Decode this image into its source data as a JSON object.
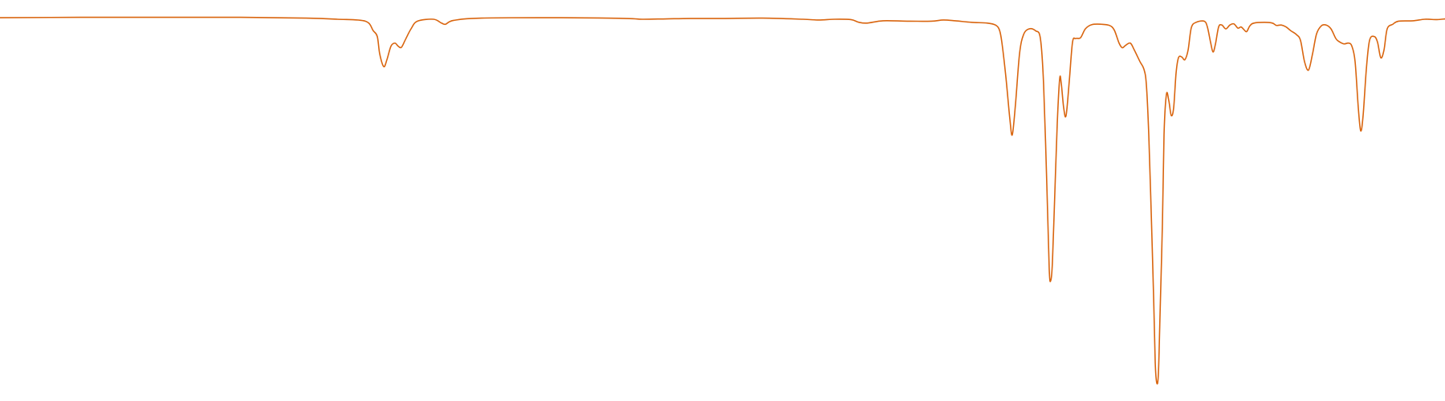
{
  "chart_data": {
    "type": "line",
    "title": "",
    "xlabel": "",
    "ylabel": "",
    "axes_visible": false,
    "grid": false,
    "legend": "none",
    "xlim": [
      0,
      1800
    ],
    "ylim": [
      0,
      1
    ],
    "color": "#d9650f",
    "series": [
      {
        "points": [
          [
            0,
            0.954
          ],
          [
            100,
            0.955
          ],
          [
            200,
            0.955
          ],
          [
            300,
            0.955
          ],
          [
            380,
            0.953
          ],
          [
            420,
            0.95
          ],
          [
            455,
            0.945
          ],
          [
            465,
            0.92
          ],
          [
            470,
            0.905
          ],
          [
            473,
            0.86
          ],
          [
            478,
            0.827
          ],
          [
            482,
            0.845
          ],
          [
            487,
            0.88
          ],
          [
            492,
            0.888
          ],
          [
            496,
            0.88
          ],
          [
            500,
            0.877
          ],
          [
            505,
            0.897
          ],
          [
            512,
            0.925
          ],
          [
            520,
            0.945
          ],
          [
            540,
            0.95
          ],
          [
            550,
            0.94
          ],
          [
            555,
            0.937
          ],
          [
            565,
            0.947
          ],
          [
            600,
            0.953
          ],
          [
            700,
            0.954
          ],
          [
            780,
            0.952
          ],
          [
            800,
            0.95
          ],
          [
            830,
            0.951
          ],
          [
            860,
            0.952
          ],
          [
            900,
            0.952
          ],
          [
            950,
            0.953
          ],
          [
            1000,
            0.95
          ],
          [
            1020,
            0.948
          ],
          [
            1040,
            0.95
          ],
          [
            1060,
            0.949
          ],
          [
            1070,
            0.942
          ],
          [
            1080,
            0.94
          ],
          [
            1100,
            0.946
          ],
          [
            1130,
            0.945
          ],
          [
            1160,
            0.945
          ],
          [
            1175,
            0.948
          ],
          [
            1190,
            0.946
          ],
          [
            1210,
            0.942
          ],
          [
            1230,
            0.94
          ],
          [
            1240,
            0.935
          ],
          [
            1245,
            0.922
          ],
          [
            1248,
            0.89
          ],
          [
            1253,
            0.8
          ],
          [
            1258,
            0.69
          ],
          [
            1261,
            0.65
          ],
          [
            1265,
            0.73
          ],
          [
            1270,
            0.86
          ],
          [
            1275,
            0.91
          ],
          [
            1282,
            0.925
          ],
          [
            1290,
            0.92
          ],
          [
            1296,
            0.9
          ],
          [
            1300,
            0.78
          ],
          [
            1304,
            0.52
          ],
          [
            1307,
            0.3
          ],
          [
            1309,
            0.272
          ],
          [
            1311,
            0.32
          ],
          [
            1314,
            0.5
          ],
          [
            1317,
            0.68
          ],
          [
            1320,
            0.795
          ],
          [
            1322,
            0.783
          ],
          [
            1325,
            0.72
          ],
          [
            1328,
            0.7
          ],
          [
            1332,
            0.79
          ],
          [
            1336,
            0.89
          ],
          [
            1340,
            0.9
          ],
          [
            1346,
            0.902
          ],
          [
            1352,
            0.925
          ],
          [
            1360,
            0.936
          ],
          [
            1372,
            0.937
          ],
          [
            1382,
            0.934
          ],
          [
            1388,
            0.922
          ],
          [
            1394,
            0.888
          ],
          [
            1398,
            0.876
          ],
          [
            1402,
            0.882
          ],
          [
            1408,
            0.888
          ],
          [
            1413,
            0.87
          ],
          [
            1420,
            0.84
          ],
          [
            1425,
            0.82
          ],
          [
            1428,
            0.78
          ],
          [
            1431,
            0.65
          ],
          [
            1434,
            0.45
          ],
          [
            1437,
            0.23
          ],
          [
            1439,
            0.06
          ],
          [
            1441,
            0.005
          ],
          [
            1443,
            0.03
          ],
          [
            1445,
            0.18
          ],
          [
            1448,
            0.42
          ],
          [
            1450,
            0.65
          ],
          [
            1453,
            0.755
          ],
          [
            1456,
            0.738
          ],
          [
            1459,
            0.7
          ],
          [
            1462,
            0.72
          ],
          [
            1465,
            0.81
          ],
          [
            1468,
            0.85
          ],
          [
            1472,
            0.852
          ],
          [
            1476,
            0.845
          ],
          [
            1480,
            0.87
          ],
          [
            1484,
            0.928
          ],
          [
            1490,
            0.942
          ],
          [
            1500,
            0.945
          ],
          [
            1504,
            0.93
          ],
          [
            1508,
            0.89
          ],
          [
            1511,
            0.865
          ],
          [
            1514,
            0.885
          ],
          [
            1518,
            0.93
          ],
          [
            1522,
            0.935
          ],
          [
            1527,
            0.925
          ],
          [
            1532,
            0.935
          ],
          [
            1537,
            0.938
          ],
          [
            1542,
            0.927
          ],
          [
            1546,
            0.93
          ],
          [
            1550,
            0.922
          ],
          [
            1553,
            0.918
          ],
          [
            1557,
            0.933
          ],
          [
            1562,
            0.94
          ],
          [
            1575,
            0.942
          ],
          [
            1585,
            0.94
          ],
          [
            1590,
            0.934
          ],
          [
            1596,
            0.935
          ],
          [
            1602,
            0.93
          ],
          [
            1608,
            0.92
          ],
          [
            1615,
            0.91
          ],
          [
            1620,
            0.895
          ],
          [
            1625,
            0.84
          ],
          [
            1630,
            0.818
          ],
          [
            1635,
            0.86
          ],
          [
            1640,
            0.912
          ],
          [
            1646,
            0.933
          ],
          [
            1652,
            0.935
          ],
          [
            1658,
            0.925
          ],
          [
            1664,
            0.9
          ],
          [
            1668,
            0.892
          ],
          [
            1674,
            0.886
          ],
          [
            1680,
            0.888
          ],
          [
            1684,
            0.88
          ],
          [
            1688,
            0.84
          ],
          [
            1692,
            0.72
          ],
          [
            1695,
            0.66
          ],
          [
            1698,
            0.7
          ],
          [
            1702,
            0.82
          ],
          [
            1706,
            0.895
          ],
          [
            1712,
            0.905
          ],
          [
            1716,
            0.89
          ],
          [
            1720,
            0.85
          ],
          [
            1724,
            0.87
          ],
          [
            1728,
            0.925
          ],
          [
            1735,
            0.937
          ],
          [
            1742,
            0.945
          ],
          [
            1760,
            0.946
          ],
          [
            1775,
            0.95
          ],
          [
            1790,
            0.949
          ],
          [
            1800,
            0.951
          ]
        ]
      }
    ]
  }
}
